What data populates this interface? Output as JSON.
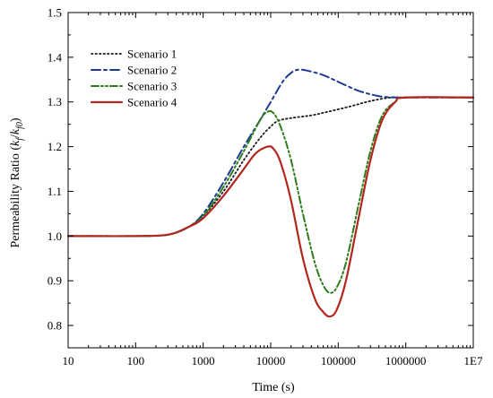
{
  "chart_data": {
    "type": "line",
    "x_scale": "log",
    "xlim": [
      10,
      10000000
    ],
    "ylim": [
      0.75,
      1.5
    ],
    "x_ticks": [
      10,
      100,
      1000,
      10000,
      100000,
      1000000,
      10000000
    ],
    "x_tick_labels": [
      "10",
      "100",
      "1000",
      "10000",
      "100000",
      "1000000",
      "1E7"
    ],
    "y_ticks": [
      0.8,
      0.9,
      1.0,
      1.1,
      1.2,
      1.3,
      1.4,
      1.5
    ],
    "y_tick_labels": [
      "0.8",
      "0.9",
      "1.0",
      "1.1",
      "1.2",
      "1.3",
      "1.4",
      "1.5"
    ],
    "xlabel": "Time (s)",
    "ylabel": {
      "prefix": "Permeability Ratio (",
      "k1": "k",
      "sub1": "f",
      "slash": "/",
      "k2": "k",
      "sub2": "f0",
      "suffix": ")"
    },
    "grid": false,
    "legend_position": "upper-left",
    "series": [
      {
        "name": "Scenario 1",
        "color": "#1a1a1a",
        "dash": "dotted",
        "points": [
          [
            10,
            1.0
          ],
          [
            100,
            1.0
          ],
          [
            300,
            1.003
          ],
          [
            600,
            1.02
          ],
          [
            1000,
            1.045
          ],
          [
            2000,
            1.1
          ],
          [
            4000,
            1.17
          ],
          [
            7000,
            1.22
          ],
          [
            10000,
            1.245
          ],
          [
            13000,
            1.258
          ],
          [
            20000,
            1.264
          ],
          [
            40000,
            1.27
          ],
          [
            70000,
            1.278
          ],
          [
            150000,
            1.29
          ],
          [
            300000,
            1.302
          ],
          [
            600000,
            1.31
          ],
          [
            1000000,
            1.31
          ],
          [
            10000000,
            1.31
          ]
        ]
      },
      {
        "name": "Scenario 2",
        "color": "#1f3a93",
        "dash": "dashdot",
        "points": [
          [
            10,
            1.0
          ],
          [
            100,
            1.0
          ],
          [
            300,
            1.003
          ],
          [
            600,
            1.02
          ],
          [
            1000,
            1.05
          ],
          [
            2000,
            1.12
          ],
          [
            4000,
            1.2
          ],
          [
            7000,
            1.26
          ],
          [
            10000,
            1.3
          ],
          [
            15000,
            1.345
          ],
          [
            20000,
            1.365
          ],
          [
            25000,
            1.372
          ],
          [
            35000,
            1.37
          ],
          [
            60000,
            1.36
          ],
          [
            100000,
            1.345
          ],
          [
            200000,
            1.325
          ],
          [
            400000,
            1.313
          ],
          [
            700000,
            1.31
          ],
          [
            1000000,
            1.31
          ],
          [
            10000000,
            1.31
          ]
        ]
      },
      {
        "name": "Scenario 3",
        "color": "#2e7d1a",
        "dash": "dashdotdot",
        "points": [
          [
            10,
            1.0
          ],
          [
            100,
            1.0
          ],
          [
            300,
            1.003
          ],
          [
            600,
            1.02
          ],
          [
            1000,
            1.045
          ],
          [
            2000,
            1.11
          ],
          [
            4000,
            1.19
          ],
          [
            7000,
            1.26
          ],
          [
            9000,
            1.278
          ],
          [
            11000,
            1.275
          ],
          [
            14000,
            1.245
          ],
          [
            20000,
            1.17
          ],
          [
            30000,
            1.05
          ],
          [
            45000,
            0.94
          ],
          [
            60000,
            0.89
          ],
          [
            75000,
            0.873
          ],
          [
            95000,
            0.885
          ],
          [
            130000,
            0.94
          ],
          [
            200000,
            1.07
          ],
          [
            300000,
            1.19
          ],
          [
            450000,
            1.27
          ],
          [
            700000,
            1.3
          ],
          [
            1000000,
            1.31
          ],
          [
            10000000,
            1.31
          ]
        ]
      },
      {
        "name": "Scenario 4",
        "color": "#b3261e",
        "dash": "solid",
        "points": [
          [
            10,
            1.0
          ],
          [
            100,
            1.0
          ],
          [
            300,
            1.003
          ],
          [
            600,
            1.02
          ],
          [
            1000,
            1.04
          ],
          [
            2000,
            1.09
          ],
          [
            4000,
            1.15
          ],
          [
            6000,
            1.185
          ],
          [
            9000,
            1.2
          ],
          [
            11000,
            1.195
          ],
          [
            14000,
            1.165
          ],
          [
            20000,
            1.08
          ],
          [
            30000,
            0.95
          ],
          [
            45000,
            0.86
          ],
          [
            60000,
            0.83
          ],
          [
            75000,
            0.82
          ],
          [
            95000,
            0.835
          ],
          [
            130000,
            0.9
          ],
          [
            200000,
            1.04
          ],
          [
            300000,
            1.17
          ],
          [
            450000,
            1.26
          ],
          [
            700000,
            1.3
          ],
          [
            1000000,
            1.31
          ],
          [
            10000000,
            1.31
          ]
        ]
      }
    ]
  }
}
